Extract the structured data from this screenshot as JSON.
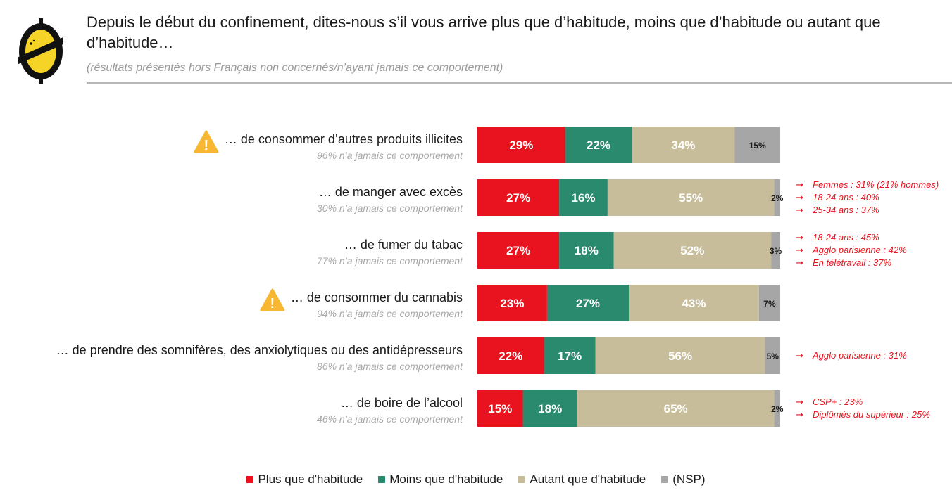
{
  "header": {
    "title": "Depuis le début du confinement, dites-nous s’il vous arrive plus que d’habitude, moins que d’habitude ou autant que d’habitude…",
    "subtitle": "(résultats présentés hors Français non concernés/n’ayant jamais ce comportement)"
  },
  "colors": {
    "plus": "#e8131e",
    "moins": "#2a8a6e",
    "autant": "#c8bd9a",
    "nsp": "#a6a6a6",
    "annotation": "#e8131e",
    "logo_yellow": "#f5d327",
    "logo_black": "#111111"
  },
  "chart_data": {
    "type": "bar",
    "orientation": "horizontal",
    "stacked": true,
    "categories": [
      "… de consommer d’autres produits illicites",
      "… de manger avec excès",
      "… de fumer du tabac",
      "… de consommer du cannabis",
      "… de prendre des somnifères, des anxiolytiques ou des antidépresseurs",
      "… de boire de l’alcool"
    ],
    "category_notes": [
      "96% n’a jamais ce comportement",
      "30% n’a jamais ce comportement",
      "77% n’a jamais ce comportement",
      "94% n’a jamais ce comportement",
      "86% n’a jamais ce comportement",
      "46% n’a jamais ce comportement"
    ],
    "warning_icon": [
      true,
      false,
      false,
      true,
      false,
      false
    ],
    "series": [
      {
        "name": "Plus que d'habitude",
        "values": [
          29,
          27,
          27,
          23,
          22,
          15
        ]
      },
      {
        "name": "Moins que d'habitude",
        "values": [
          22,
          16,
          18,
          27,
          17,
          18
        ]
      },
      {
        "name": "Autant que d'habitude",
        "values": [
          34,
          55,
          52,
          43,
          56,
          65
        ]
      },
      {
        "name": "(NSP)",
        "values": [
          15,
          2,
          3,
          7,
          5,
          2
        ]
      }
    ],
    "value_format": "{v}%",
    "xlim": [
      0,
      100
    ],
    "legend_position": "bottom",
    "annotations": [
      [],
      [
        "Femmes : 31% (21% hommes)",
        "18-24 ans : 40%",
        "25-34 ans : 37%"
      ],
      [
        "18-24 ans : 45%",
        "Agglo parisienne : 42%",
        "En télétravail : 37%"
      ],
      [],
      [
        "Agglo parisienne : 31%"
      ],
      [
        "CSP+ : 23%",
        "Diplômés du supérieur : 25%"
      ]
    ],
    "annotation_arrow": "→"
  }
}
